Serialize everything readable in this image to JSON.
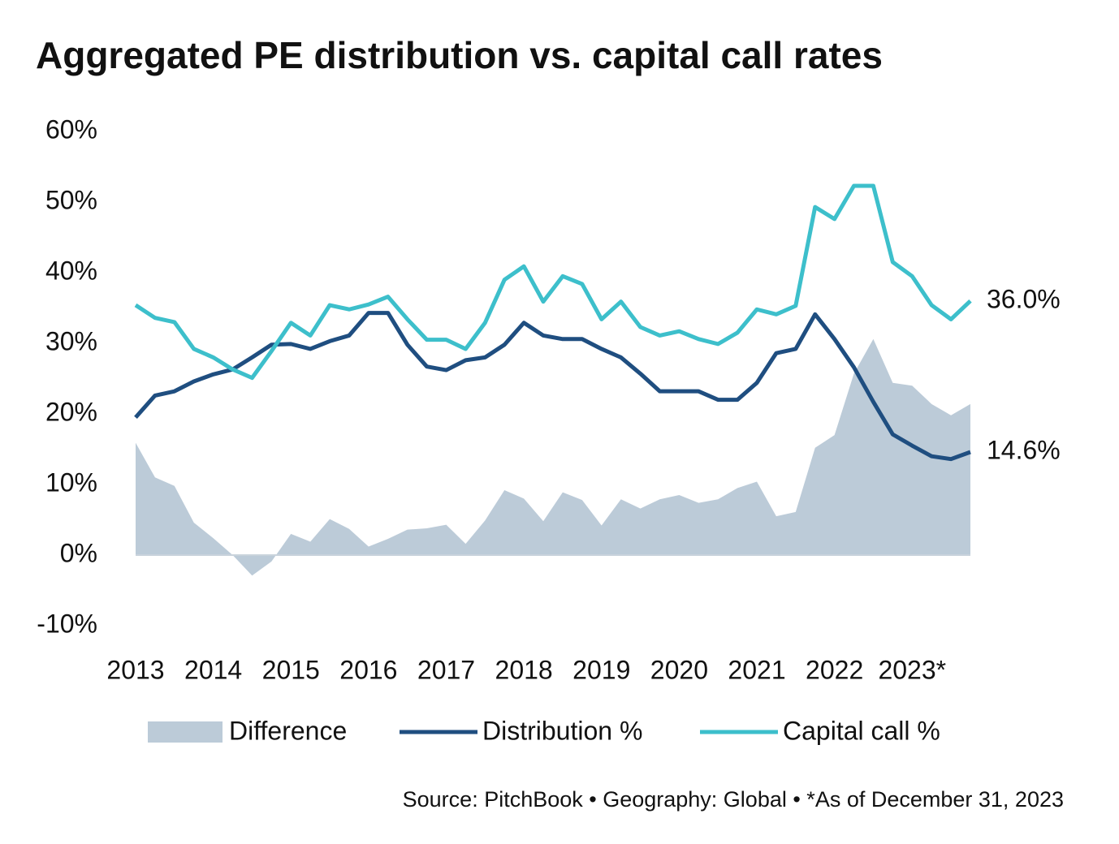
{
  "chart_data": {
    "type": "line",
    "title": "Aggregated PE distribution vs. capital call rates",
    "source": "Source: PitchBook • Geography: Global • *As of December 31, 2023",
    "categories": [
      "2013",
      null,
      null,
      null,
      "2014",
      null,
      null,
      null,
      "2015",
      null,
      null,
      null,
      "2016",
      null,
      null,
      null,
      "2017",
      null,
      null,
      null,
      "2018",
      null,
      null,
      null,
      "2019",
      null,
      null,
      null,
      "2020",
      null,
      null,
      null,
      "2021",
      null,
      null,
      null,
      "2022",
      null,
      null,
      null,
      "2023*",
      null,
      null,
      null
    ],
    "series": [
      {
        "name": "Difference",
        "kind": "area",
        "color": "#bccbd8",
        "values": [
          15.9,
          11.0,
          9.8,
          4.6,
          2.4,
          0.0,
          -2.9,
          -0.9,
          3.0,
          1.9,
          5.1,
          3.7,
          1.2,
          2.3,
          3.6,
          3.8,
          4.3,
          1.6,
          4.9,
          9.2,
          8.0,
          4.8,
          8.9,
          7.8,
          4.2,
          7.9,
          6.6,
          7.9,
          8.5,
          7.4,
          7.9,
          9.5,
          10.4,
          5.5,
          6.1,
          15.2,
          17.0,
          25.7,
          30.6,
          24.4,
          24.0,
          21.4,
          19.8,
          21.4
        ]
      },
      {
        "name": "Distribution %",
        "kind": "line",
        "color": "#1f4e80",
        "end_label": "14.6%",
        "values": [
          19.5,
          22.6,
          23.2,
          24.6,
          25.6,
          26.3,
          28.0,
          29.8,
          29.9,
          29.2,
          30.3,
          31.1,
          34.3,
          34.3,
          29.8,
          26.7,
          26.2,
          27.6,
          28.0,
          29.8,
          32.9,
          31.1,
          30.6,
          30.6,
          29.2,
          28.0,
          25.7,
          23.2,
          23.2,
          23.2,
          22.0,
          22.0,
          24.4,
          28.6,
          29.2,
          34.1,
          30.6,
          26.6,
          21.7,
          17.1,
          15.5,
          14.0,
          13.6,
          14.6
        ]
      },
      {
        "name": "Capital call %",
        "kind": "line",
        "color": "#3dbfcb",
        "end_label": "36.0%",
        "values": [
          35.4,
          33.6,
          33.0,
          29.2,
          28.0,
          26.3,
          25.1,
          28.9,
          32.9,
          31.1,
          35.4,
          34.8,
          35.5,
          36.6,
          33.4,
          30.5,
          30.5,
          29.2,
          32.9,
          39.0,
          40.9,
          35.9,
          39.5,
          38.4,
          33.4,
          35.9,
          32.3,
          31.1,
          31.7,
          30.6,
          29.9,
          31.5,
          34.8,
          34.1,
          35.3,
          49.3,
          47.6,
          52.3,
          52.3,
          41.5,
          39.5,
          35.4,
          33.4,
          36.0
        ]
      }
    ],
    "ylim": [
      -10,
      60
    ],
    "yticks": [
      {
        "value": -10,
        "label": "-10%"
      },
      {
        "value": 0,
        "label": "0%"
      },
      {
        "value": 10,
        "label": "10%"
      },
      {
        "value": 20,
        "label": "20%"
      },
      {
        "value": 30,
        "label": "30%"
      },
      {
        "value": 40,
        "label": "40%"
      },
      {
        "value": 50,
        "label": "50%"
      },
      {
        "value": 60,
        "label": "60%"
      }
    ],
    "legend": "bottom"
  }
}
